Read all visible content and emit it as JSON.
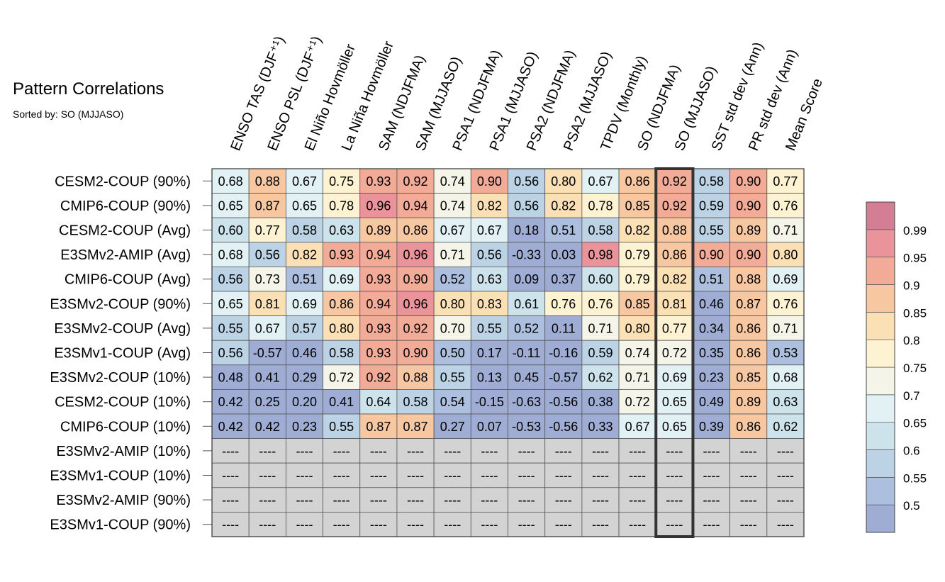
{
  "chart_data": {
    "type": "heatmap",
    "title": "Pattern Correlations",
    "subtitle": "Sorted by: SO (MJJASO)",
    "highlight_column": "SO (MJJASO)",
    "columns": [
      "ENSO TAS (DJF⁺¹)",
      "ENSO PSL (DJF⁺¹)",
      "El Niño Hovmöller",
      "La Niña Hovmöller",
      "SAM (NDJFMA)",
      "SAM (MJJASO)",
      "PSA1 (NDJFMA)",
      "PSA1 (MJJASO)",
      "PSA2 (NDJFMA)",
      "PSA2 (MJJASO)",
      "TPDV (Monthly)",
      "SO (NDJFMA)",
      "SO (MJJASO)",
      "SST std dev (Ann)",
      "PR std dev (Ann)",
      "Mean Score"
    ],
    "rows": [
      "CESM2-COUP (90%)",
      "CMIP6-COUP (90%)",
      "CESM2-COUP (Avg)",
      "E3SMv2-AMIP (Avg)",
      "CMIP6-COUP (Avg)",
      "E3SMv2-COUP (90%)",
      "E3SMv2-COUP (Avg)",
      "E3SMv1-COUP (Avg)",
      "E3SMv2-COUP (10%)",
      "CESM2-COUP (10%)",
      "CMIP6-COUP (10%)",
      "E3SMv2-AMIP (10%)",
      "E3SMv1-COUP (10%)",
      "E3SMv2-AMIP (90%)",
      "E3SMv1-COUP (90%)"
    ],
    "values": [
      [
        0.68,
        0.88,
        0.67,
        0.75,
        0.93,
        0.92,
        0.74,
        0.9,
        0.56,
        0.8,
        0.67,
        0.86,
        0.92,
        0.58,
        0.9,
        0.77
      ],
      [
        0.65,
        0.87,
        0.65,
        0.78,
        0.96,
        0.94,
        0.74,
        0.82,
        0.56,
        0.82,
        0.78,
        0.85,
        0.92,
        0.59,
        0.9,
        0.76
      ],
      [
        0.6,
        0.77,
        0.58,
        0.63,
        0.89,
        0.86,
        0.67,
        0.67,
        0.18,
        0.51,
        0.58,
        0.82,
        0.88,
        0.55,
        0.89,
        0.71
      ],
      [
        0.68,
        0.56,
        0.82,
        0.93,
        0.94,
        0.96,
        0.71,
        0.56,
        -0.33,
        0.03,
        0.98,
        0.79,
        0.86,
        0.9,
        0.9,
        0.8
      ],
      [
        0.56,
        0.73,
        0.51,
        0.69,
        0.93,
        0.9,
        0.52,
        0.63,
        0.09,
        0.37,
        0.6,
        0.79,
        0.82,
        0.51,
        0.88,
        0.69
      ],
      [
        0.65,
        0.81,
        0.69,
        0.86,
        0.94,
        0.96,
        0.8,
        0.83,
        0.61,
        0.76,
        0.76,
        0.85,
        0.81,
        0.46,
        0.87,
        0.76
      ],
      [
        0.55,
        0.67,
        0.57,
        0.8,
        0.93,
        0.92,
        0.7,
        0.55,
        0.52,
        0.11,
        0.71,
        0.8,
        0.77,
        0.34,
        0.86,
        0.71
      ],
      [
        0.56,
        -0.57,
        0.46,
        0.58,
        0.93,
        0.9,
        0.5,
        0.17,
        -0.11,
        -0.16,
        0.59,
        0.74,
        0.72,
        0.35,
        0.86,
        0.53
      ],
      [
        0.48,
        0.41,
        0.29,
        0.72,
        0.92,
        0.88,
        0.55,
        0.13,
        0.45,
        -0.57,
        0.62,
        0.71,
        0.69,
        0.23,
        0.85,
        0.68
      ],
      [
        0.42,
        0.25,
        0.2,
        0.41,
        0.64,
        0.58,
        0.54,
        -0.15,
        -0.63,
        -0.56,
        0.38,
        0.72,
        0.65,
        0.49,
        0.89,
        0.63
      ],
      [
        0.42,
        0.42,
        0.23,
        0.55,
        0.87,
        0.87,
        0.27,
        0.07,
        -0.53,
        -0.56,
        0.33,
        0.67,
        0.65,
        0.39,
        0.86,
        0.62
      ],
      [
        null,
        null,
        null,
        null,
        null,
        null,
        null,
        null,
        null,
        null,
        null,
        null,
        null,
        null,
        null,
        null
      ],
      [
        null,
        null,
        null,
        null,
        null,
        null,
        null,
        null,
        null,
        null,
        null,
        null,
        null,
        null,
        null,
        null
      ],
      [
        null,
        null,
        null,
        null,
        null,
        null,
        null,
        null,
        null,
        null,
        null,
        null,
        null,
        null,
        null,
        null
      ],
      [
        null,
        null,
        null,
        null,
        null,
        null,
        null,
        null,
        null,
        null,
        null,
        null,
        null,
        null,
        null,
        null
      ]
    ],
    "missing_label": "----",
    "colorbar": {
      "levels": [
        0.5,
        0.55,
        0.6,
        0.65,
        0.7,
        0.75,
        0.8,
        0.85,
        0.9,
        0.95,
        0.99
      ],
      "tick_labels": [
        "0.5",
        "0.55",
        "0.6",
        "0.65",
        "0.7",
        "0.75",
        "0.8",
        "0.85",
        "0.9",
        "0.95",
        "0.99"
      ],
      "colors": [
        "#9fadd4",
        "#acbfde",
        "#bcd3e5",
        "#cde3ec",
        "#e2f1f4",
        "#f4f4e9",
        "#fdf3d2",
        "#fbe0b5",
        "#f7c7a2",
        "#f2ab97",
        "#eb939a",
        "#d47e96"
      ],
      "missing_color": "#d3d3d3"
    }
  }
}
